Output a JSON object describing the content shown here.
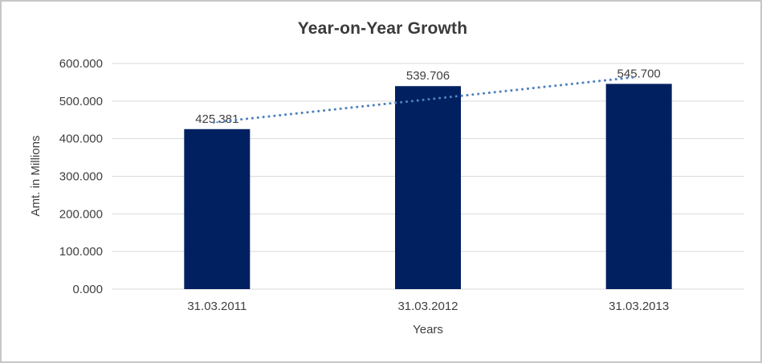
{
  "frame": {
    "background": "#ffffff",
    "border_color": "#c6c6c6"
  },
  "chart_data": {
    "type": "bar",
    "title": "Year-on-Year Growth",
    "xlabel": "Years",
    "ylabel": "Amt. in Millions",
    "categories": [
      "31.03.2011",
      "31.03.2012",
      "31.03.2013"
    ],
    "values": [
      425.381,
      539.706,
      545.7
    ],
    "data_labels": [
      "425.381",
      "539.706",
      "545.700"
    ],
    "ylim": [
      0,
      600
    ],
    "ytick_step": 100,
    "ytick_labels": [
      "0.000",
      "100.000",
      "200.000",
      "300.000",
      "400.000",
      "500.000",
      "600.000"
    ],
    "grid": true,
    "legend": false,
    "colors": {
      "bar": "#002060",
      "gridline": "#d9d9d9",
      "text": "#404040",
      "title": "#3a3a3a",
      "trendline": "#4e81bd"
    },
    "trendline": {
      "type": "linear",
      "style": "dotted"
    }
  }
}
